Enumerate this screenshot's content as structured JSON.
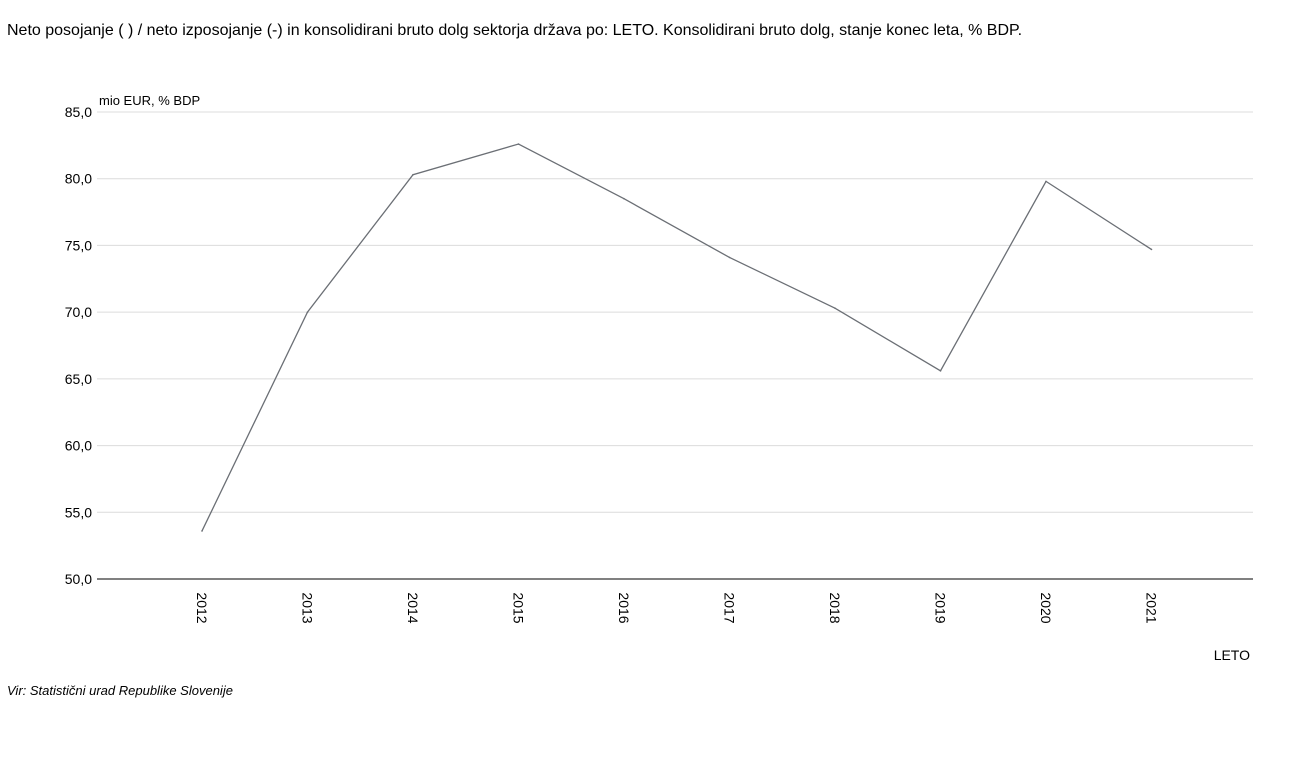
{
  "title": "Neto posojanje ( ) / neto izposojanje (-) in konsolidirani bruto dolg sektorja država po: LETO. Konsolidirani bruto dolg, stanje konec leta, % BDP.",
  "source": "Vir: Statistični urad Republike Slovenije",
  "colors": {
    "line": "#6b6f75",
    "grid": "#dcdcdc",
    "axis": "#000000"
  },
  "chart_data": {
    "type": "line",
    "title": "Neto posojanje ( ) / neto izposojanje (-) in konsolidirani bruto dolg sektorja država po: LETO. Konsolidirani bruto dolg, stanje konec leta, % BDP.",
    "xlabel": "LETO",
    "ylabel": "mio EUR, % BDP",
    "categories": [
      "2012",
      "2013",
      "2014",
      "2015",
      "2016",
      "2017",
      "2018",
      "2019",
      "2020",
      "2021"
    ],
    "series": [
      {
        "values": [
          53.6,
          70.0,
          80.3,
          82.6,
          78.5,
          74.1,
          70.3,
          65.6,
          79.8,
          74.7
        ]
      }
    ],
    "ylim": [
      50,
      85
    ],
    "yticks": [
      "50,0",
      "55,0",
      "60,0",
      "65,0",
      "70,0",
      "75,0",
      "80,0",
      "85,0"
    ],
    "grid": true,
    "legend": "none"
  }
}
